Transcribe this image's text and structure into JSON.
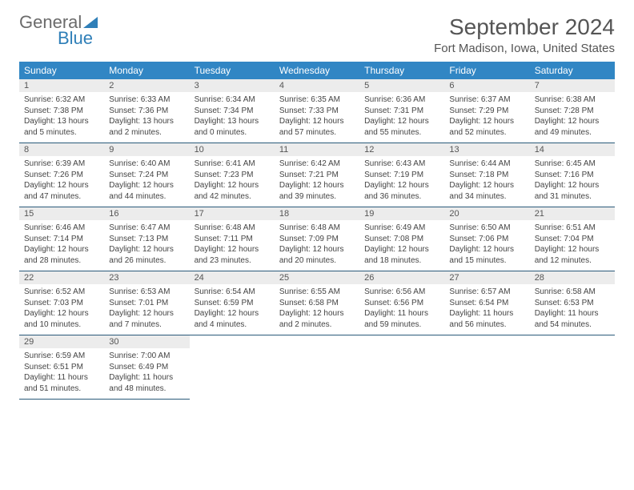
{
  "logo": {
    "word1": "General",
    "word2": "Blue"
  },
  "title": "September 2024",
  "location": "Fort Madison, Iowa, United States",
  "colors": {
    "header_bg": "#3186c4",
    "header_text": "#ffffff",
    "daynum_bg": "#ececec",
    "rule": "#2a5a7a",
    "logo_gray": "#6b6b6b",
    "logo_blue": "#2f7fb8"
  },
  "day_headers": [
    "Sunday",
    "Monday",
    "Tuesday",
    "Wednesday",
    "Thursday",
    "Friday",
    "Saturday"
  ],
  "weeks": [
    {
      "nums": [
        "1",
        "2",
        "3",
        "4",
        "5",
        "6",
        "7"
      ],
      "cells": [
        {
          "sunrise": "Sunrise: 6:32 AM",
          "sunset": "Sunset: 7:38 PM",
          "day1": "Daylight: 13 hours",
          "day2": "and 5 minutes."
        },
        {
          "sunrise": "Sunrise: 6:33 AM",
          "sunset": "Sunset: 7:36 PM",
          "day1": "Daylight: 13 hours",
          "day2": "and 2 minutes."
        },
        {
          "sunrise": "Sunrise: 6:34 AM",
          "sunset": "Sunset: 7:34 PM",
          "day1": "Daylight: 13 hours",
          "day2": "and 0 minutes."
        },
        {
          "sunrise": "Sunrise: 6:35 AM",
          "sunset": "Sunset: 7:33 PM",
          "day1": "Daylight: 12 hours",
          "day2": "and 57 minutes."
        },
        {
          "sunrise": "Sunrise: 6:36 AM",
          "sunset": "Sunset: 7:31 PM",
          "day1": "Daylight: 12 hours",
          "day2": "and 55 minutes."
        },
        {
          "sunrise": "Sunrise: 6:37 AM",
          "sunset": "Sunset: 7:29 PM",
          "day1": "Daylight: 12 hours",
          "day2": "and 52 minutes."
        },
        {
          "sunrise": "Sunrise: 6:38 AM",
          "sunset": "Sunset: 7:28 PM",
          "day1": "Daylight: 12 hours",
          "day2": "and 49 minutes."
        }
      ]
    },
    {
      "nums": [
        "8",
        "9",
        "10",
        "11",
        "12",
        "13",
        "14"
      ],
      "cells": [
        {
          "sunrise": "Sunrise: 6:39 AM",
          "sunset": "Sunset: 7:26 PM",
          "day1": "Daylight: 12 hours",
          "day2": "and 47 minutes."
        },
        {
          "sunrise": "Sunrise: 6:40 AM",
          "sunset": "Sunset: 7:24 PM",
          "day1": "Daylight: 12 hours",
          "day2": "and 44 minutes."
        },
        {
          "sunrise": "Sunrise: 6:41 AM",
          "sunset": "Sunset: 7:23 PM",
          "day1": "Daylight: 12 hours",
          "day2": "and 42 minutes."
        },
        {
          "sunrise": "Sunrise: 6:42 AM",
          "sunset": "Sunset: 7:21 PM",
          "day1": "Daylight: 12 hours",
          "day2": "and 39 minutes."
        },
        {
          "sunrise": "Sunrise: 6:43 AM",
          "sunset": "Sunset: 7:19 PM",
          "day1": "Daylight: 12 hours",
          "day2": "and 36 minutes."
        },
        {
          "sunrise": "Sunrise: 6:44 AM",
          "sunset": "Sunset: 7:18 PM",
          "day1": "Daylight: 12 hours",
          "day2": "and 34 minutes."
        },
        {
          "sunrise": "Sunrise: 6:45 AM",
          "sunset": "Sunset: 7:16 PM",
          "day1": "Daylight: 12 hours",
          "day2": "and 31 minutes."
        }
      ]
    },
    {
      "nums": [
        "15",
        "16",
        "17",
        "18",
        "19",
        "20",
        "21"
      ],
      "cells": [
        {
          "sunrise": "Sunrise: 6:46 AM",
          "sunset": "Sunset: 7:14 PM",
          "day1": "Daylight: 12 hours",
          "day2": "and 28 minutes."
        },
        {
          "sunrise": "Sunrise: 6:47 AM",
          "sunset": "Sunset: 7:13 PM",
          "day1": "Daylight: 12 hours",
          "day2": "and 26 minutes."
        },
        {
          "sunrise": "Sunrise: 6:48 AM",
          "sunset": "Sunset: 7:11 PM",
          "day1": "Daylight: 12 hours",
          "day2": "and 23 minutes."
        },
        {
          "sunrise": "Sunrise: 6:48 AM",
          "sunset": "Sunset: 7:09 PM",
          "day1": "Daylight: 12 hours",
          "day2": "and 20 minutes."
        },
        {
          "sunrise": "Sunrise: 6:49 AM",
          "sunset": "Sunset: 7:08 PM",
          "day1": "Daylight: 12 hours",
          "day2": "and 18 minutes."
        },
        {
          "sunrise": "Sunrise: 6:50 AM",
          "sunset": "Sunset: 7:06 PM",
          "day1": "Daylight: 12 hours",
          "day2": "and 15 minutes."
        },
        {
          "sunrise": "Sunrise: 6:51 AM",
          "sunset": "Sunset: 7:04 PM",
          "day1": "Daylight: 12 hours",
          "day2": "and 12 minutes."
        }
      ]
    },
    {
      "nums": [
        "22",
        "23",
        "24",
        "25",
        "26",
        "27",
        "28"
      ],
      "cells": [
        {
          "sunrise": "Sunrise: 6:52 AM",
          "sunset": "Sunset: 7:03 PM",
          "day1": "Daylight: 12 hours",
          "day2": "and 10 minutes."
        },
        {
          "sunrise": "Sunrise: 6:53 AM",
          "sunset": "Sunset: 7:01 PM",
          "day1": "Daylight: 12 hours",
          "day2": "and 7 minutes."
        },
        {
          "sunrise": "Sunrise: 6:54 AM",
          "sunset": "Sunset: 6:59 PM",
          "day1": "Daylight: 12 hours",
          "day2": "and 4 minutes."
        },
        {
          "sunrise": "Sunrise: 6:55 AM",
          "sunset": "Sunset: 6:58 PM",
          "day1": "Daylight: 12 hours",
          "day2": "and 2 minutes."
        },
        {
          "sunrise": "Sunrise: 6:56 AM",
          "sunset": "Sunset: 6:56 PM",
          "day1": "Daylight: 11 hours",
          "day2": "and 59 minutes."
        },
        {
          "sunrise": "Sunrise: 6:57 AM",
          "sunset": "Sunset: 6:54 PM",
          "day1": "Daylight: 11 hours",
          "day2": "and 56 minutes."
        },
        {
          "sunrise": "Sunrise: 6:58 AM",
          "sunset": "Sunset: 6:53 PM",
          "day1": "Daylight: 11 hours",
          "day2": "and 54 minutes."
        }
      ]
    },
    {
      "nums": [
        "29",
        "30",
        "",
        "",
        "",
        "",
        ""
      ],
      "cells": [
        {
          "sunrise": "Sunrise: 6:59 AM",
          "sunset": "Sunset: 6:51 PM",
          "day1": "Daylight: 11 hours",
          "day2": "and 51 minutes."
        },
        {
          "sunrise": "Sunrise: 7:00 AM",
          "sunset": "Sunset: 6:49 PM",
          "day1": "Daylight: 11 hours",
          "day2": "and 48 minutes."
        },
        null,
        null,
        null,
        null,
        null
      ]
    }
  ]
}
